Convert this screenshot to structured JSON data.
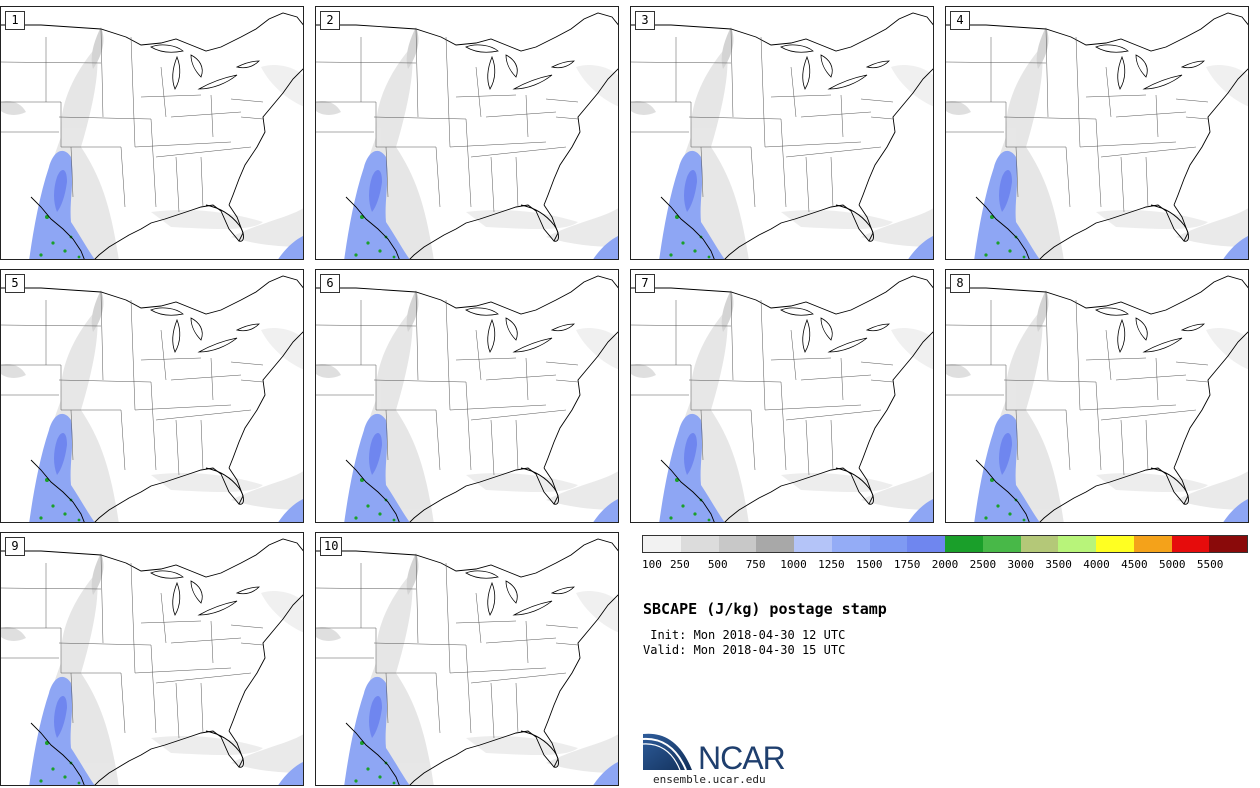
{
  "panels": [
    {
      "label": "1"
    },
    {
      "label": "2"
    },
    {
      "label": "3"
    },
    {
      "label": "4"
    },
    {
      "label": "5"
    },
    {
      "label": "6"
    },
    {
      "label": "7"
    },
    {
      "label": "8"
    },
    {
      "label": "9"
    },
    {
      "label": "10"
    }
  ],
  "colorbar": {
    "colors": [
      "#f2f2f2",
      "#dcdcdc",
      "#c8c8c8",
      "#a8a8a8",
      "#b4c4f8",
      "#94acf6",
      "#7f9af3",
      "#6f86ef",
      "#1a9f2a",
      "#48b848",
      "#b4c878",
      "#b8f47a",
      "#ffff22",
      "#f4a21a",
      "#e60c0c",
      "#8a0a0a"
    ],
    "ticks": [
      "100",
      "250",
      "500",
      "750",
      "1000",
      "1250",
      "1500",
      "1750",
      "2000",
      "2500",
      "3000",
      "3500",
      "4000",
      "4500",
      "5000",
      "5500"
    ]
  },
  "title": "SBCAPE (J/kg) postage stamp",
  "init": " Init: Mon 2018-04-30 12 UTC",
  "valid": "Valid: Mon 2018-04-30 15 UTC",
  "logo": {
    "text": "NCAR",
    "url": "ensemble.ucar.edu"
  }
}
